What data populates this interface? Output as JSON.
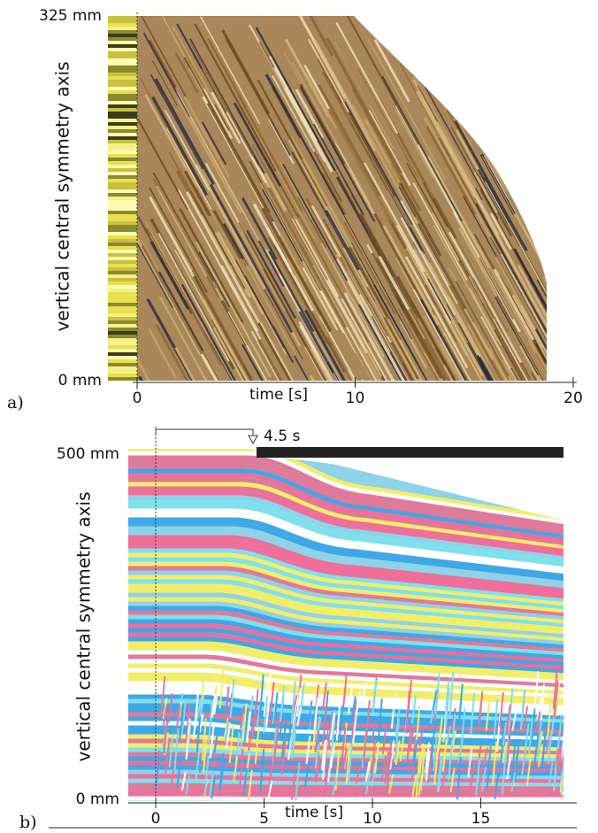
{
  "panels": [
    {
      "label": "a)",
      "y_top": "325 mm",
      "y_bottom": "0 mm",
      "y_axis_label": "vertical central symmetry axis",
      "x_axis_label": "time [s]",
      "xticks": [
        0,
        10,
        20
      ]
    },
    {
      "label": "b)",
      "y_top": "500 mm",
      "y_bottom": "0 mm",
      "y_axis_label": "vertical central symmetry axis",
      "x_axis_label": "time [s]",
      "xticks": [
        0,
        5,
        10,
        15
      ],
      "annotation": "4.5 s"
    }
  ]
}
